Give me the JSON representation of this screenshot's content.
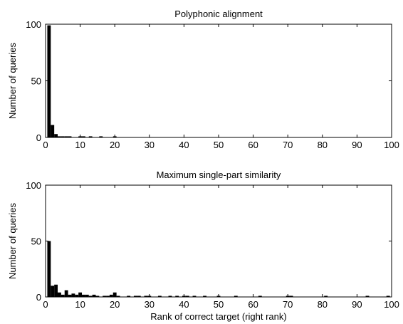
{
  "chart_data": [
    {
      "type": "bar",
      "title": "Polyphonic alignment",
      "xlabel": "",
      "ylabel": "Number of queries",
      "xlim": [
        0,
        100
      ],
      "ylim": [
        0,
        100
      ],
      "xticks": [
        0,
        10,
        20,
        30,
        40,
        50,
        60,
        70,
        80,
        90,
        100
      ],
      "yticks": [
        0,
        50,
        100
      ],
      "bar_color": "#000000",
      "x": [
        1,
        2,
        3,
        4,
        5,
        6,
        7,
        10,
        11,
        13,
        16,
        20
      ],
      "values": [
        99,
        11,
        3,
        1,
        1,
        1,
        1,
        1,
        1,
        1,
        1,
        1
      ]
    },
    {
      "type": "bar",
      "title": "Maximum single-part similarity",
      "xlabel": "Rank of correct target (right rank)",
      "ylabel": "Number of queries",
      "xlim": [
        0,
        100
      ],
      "ylim": [
        0,
        100
      ],
      "xticks": [
        0,
        10,
        20,
        30,
        40,
        50,
        60,
        70,
        80,
        90,
        100
      ],
      "yticks": [
        0,
        50,
        100
      ],
      "bar_color": "#000000",
      "x": [
        1,
        2,
        3,
        4,
        5,
        6,
        7,
        8,
        9,
        10,
        11,
        12,
        13,
        14,
        15,
        17,
        18,
        19,
        20,
        21,
        24,
        26,
        27,
        29,
        30,
        33,
        36,
        38,
        40,
        41,
        43,
        46,
        50,
        55,
        62,
        70,
        71,
        81,
        93,
        99
      ],
      "values": [
        50,
        10,
        11,
        4,
        2,
        6,
        2,
        3,
        2,
        4,
        2,
        2,
        1,
        2,
        1,
        1,
        1,
        2,
        4,
        1,
        1,
        1,
        1,
        1,
        1,
        1,
        1,
        1,
        1,
        1,
        1,
        1,
        1,
        1,
        1,
        1,
        1,
        1,
        1,
        1
      ]
    }
  ]
}
